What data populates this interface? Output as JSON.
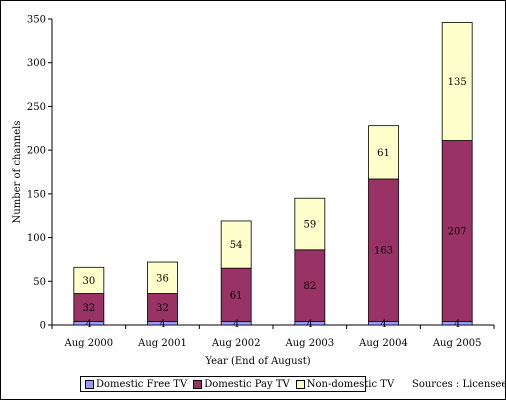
{
  "chart_data": {
    "type": "bar",
    "stacked": true,
    "categories": [
      "Aug 2000",
      "Aug 2001",
      "Aug 2002",
      "Aug 2003",
      "Aug 2004",
      "Aug 2005"
    ],
    "series": [
      {
        "name": "Domestic Free TV",
        "values": [
          4,
          4,
          4,
          4,
          4,
          4
        ],
        "color": "#9999ff"
      },
      {
        "name": "Domestic Pay TV",
        "values": [
          32,
          32,
          61,
          82,
          163,
          207
        ],
        "color": "#993366"
      },
      {
        "name": "Non-domestic TV",
        "values": [
          30,
          36,
          54,
          59,
          61,
          135
        ],
        "color": "#ffffcc"
      }
    ],
    "xlabel": "Year (End of August)",
    "ylabel": "Number of channels",
    "ylim": [
      0,
      350
    ],
    "yticks": [
      0,
      50,
      100,
      150,
      200,
      250,
      300,
      350
    ],
    "grid": false,
    "legend_position": "bottom"
  },
  "source_note": "Sources : Licensees"
}
